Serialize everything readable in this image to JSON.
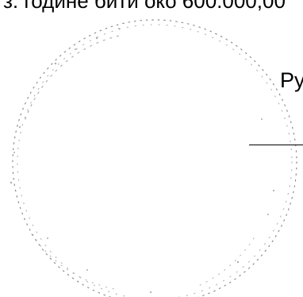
{
  "document": {
    "top_line": "з. године бити око 600.000,00",
    "fragment_text": "Ру"
  },
  "colors": {
    "ink": "#000000",
    "stamp_ink": "#7a7a7a",
    "background": "#ffffff"
  }
}
